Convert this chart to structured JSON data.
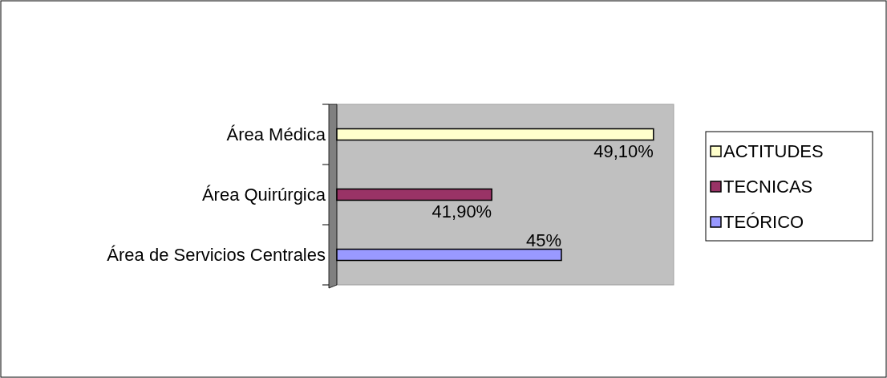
{
  "chart_data": {
    "type": "bar",
    "orientation": "horizontal",
    "stacked": true,
    "categories": [
      "Área Médica",
      "Área Quirúrgica",
      "Área de Servicios Centrales"
    ],
    "xlim": [
      35,
      50
    ],
    "tick_labels": "y",
    "legend": "right",
    "series": [
      {
        "name": "ACTITUDES",
        "color": "#ffffcc",
        "values": [
          49.1,
          null,
          null
        ],
        "value_labels": [
          "49,10%",
          null,
          null
        ]
      },
      {
        "name": "TECNICAS",
        "color": "#993366",
        "values": [
          null,
          41.9,
          null
        ],
        "value_labels": [
          null,
          "41,90%",
          null
        ]
      },
      {
        "name": "TEÓRICO",
        "color": "#9999ff",
        "values": [
          null,
          null,
          45
        ],
        "value_labels": [
          null,
          null,
          "45%"
        ]
      }
    ]
  }
}
